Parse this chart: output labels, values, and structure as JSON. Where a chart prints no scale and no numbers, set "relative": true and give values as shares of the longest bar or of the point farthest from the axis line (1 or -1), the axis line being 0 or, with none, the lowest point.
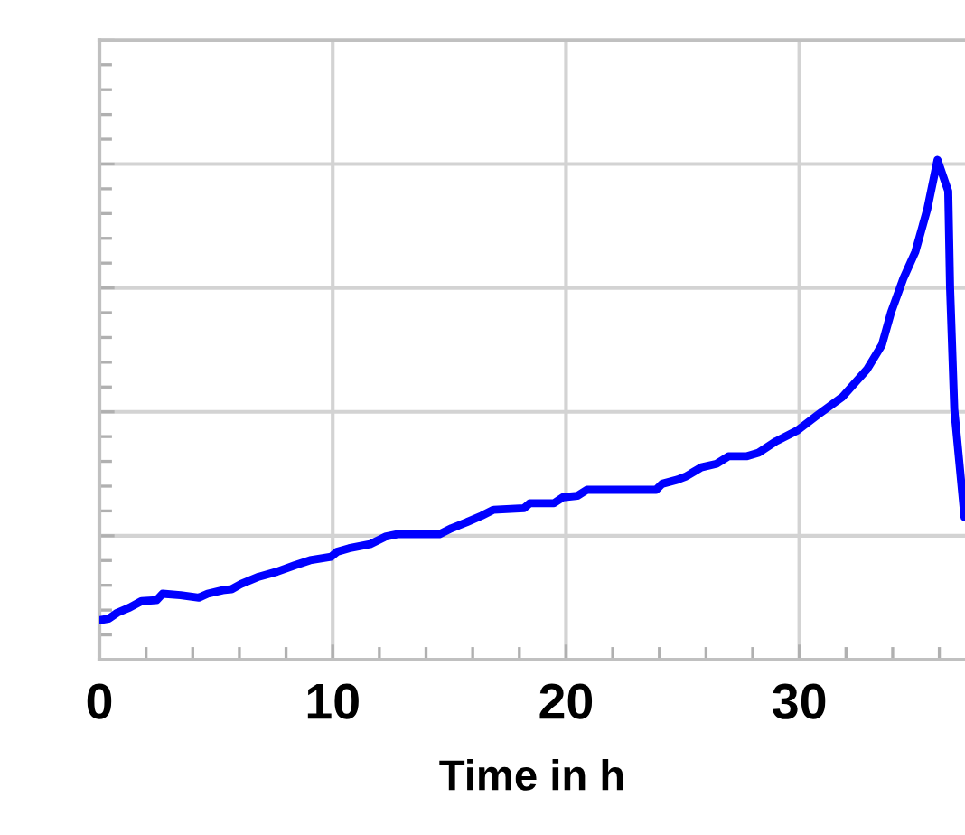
{
  "chart_data": {
    "type": "line",
    "xlabel": "Time in h",
    "relative": true,
    "x": [
      0,
      0.4,
      0.77,
      1.29,
      1.8,
      2.45,
      2.71,
      3.48,
      4.26,
      4.64,
      5.29,
      5.67,
      6.06,
      6.83,
      7.61,
      8.38,
      9.03,
      9.93,
      10.19,
      10.7,
      11.6,
      12.25,
      12.77,
      14.57,
      15.09,
      15.74,
      16.38,
      16.9,
      18.2,
      18.45,
      19.48,
      19.87,
      20.5,
      20.9,
      21.8,
      23.86,
      24.12,
      24.77,
      25.15,
      25.8,
      26.45,
      26.96,
      27.73,
      28.25,
      29.0,
      29.92,
      30.82,
      31.85,
      32.9,
      33.54,
      33.93,
      34.45,
      34.97,
      35.48,
      35.92,
      36.38,
      36.46,
      36.64,
      37.08
    ],
    "series": [
      {
        "color": "#0000ff",
        "values": [
          0.079,
          0.082,
          0.094,
          0.104,
          0.117,
          0.119,
          0.132,
          0.129,
          0.124,
          0.132,
          0.139,
          0.141,
          0.151,
          0.166,
          0.176,
          0.189,
          0.199,
          0.206,
          0.216,
          0.223,
          0.231,
          0.246,
          0.251,
          0.251,
          0.263,
          0.275,
          0.288,
          0.3,
          0.303,
          0.313,
          0.313,
          0.325,
          0.328,
          0.34,
          0.34,
          0.34,
          0.352,
          0.36,
          0.367,
          0.385,
          0.392,
          0.407,
          0.407,
          0.414,
          0.437,
          0.459,
          0.491,
          0.526,
          0.581,
          0.63,
          0.695,
          0.762,
          0.816,
          0.901,
          1,
          0.938,
          0.744,
          0.501,
          0.285
        ]
      }
    ],
    "xlim": [
      0,
      37.1
    ],
    "xticks": [
      0,
      {
        "value": 2,
        "label": null
      },
      {
        "value": 4,
        "label": null
      },
      {
        "value": 6,
        "label": null
      },
      {
        "value": 8,
        "label": null
      },
      10,
      {
        "value": 12,
        "label": null
      },
      {
        "value": 14,
        "label": null
      },
      {
        "value": 16,
        "label": null
      },
      {
        "value": 18,
        "label": null
      },
      20,
      {
        "value": 22,
        "label": null
      },
      {
        "value": 24,
        "label": null
      },
      {
        "value": 26,
        "label": null
      },
      {
        "value": 28,
        "label": null
      },
      30,
      {
        "value": 32,
        "label": null
      },
      {
        "value": 34,
        "label": null
      },
      {
        "value": 36,
        "label": null
      }
    ],
    "grid": true,
    "marker": "none",
    "line_style": "solid"
  }
}
